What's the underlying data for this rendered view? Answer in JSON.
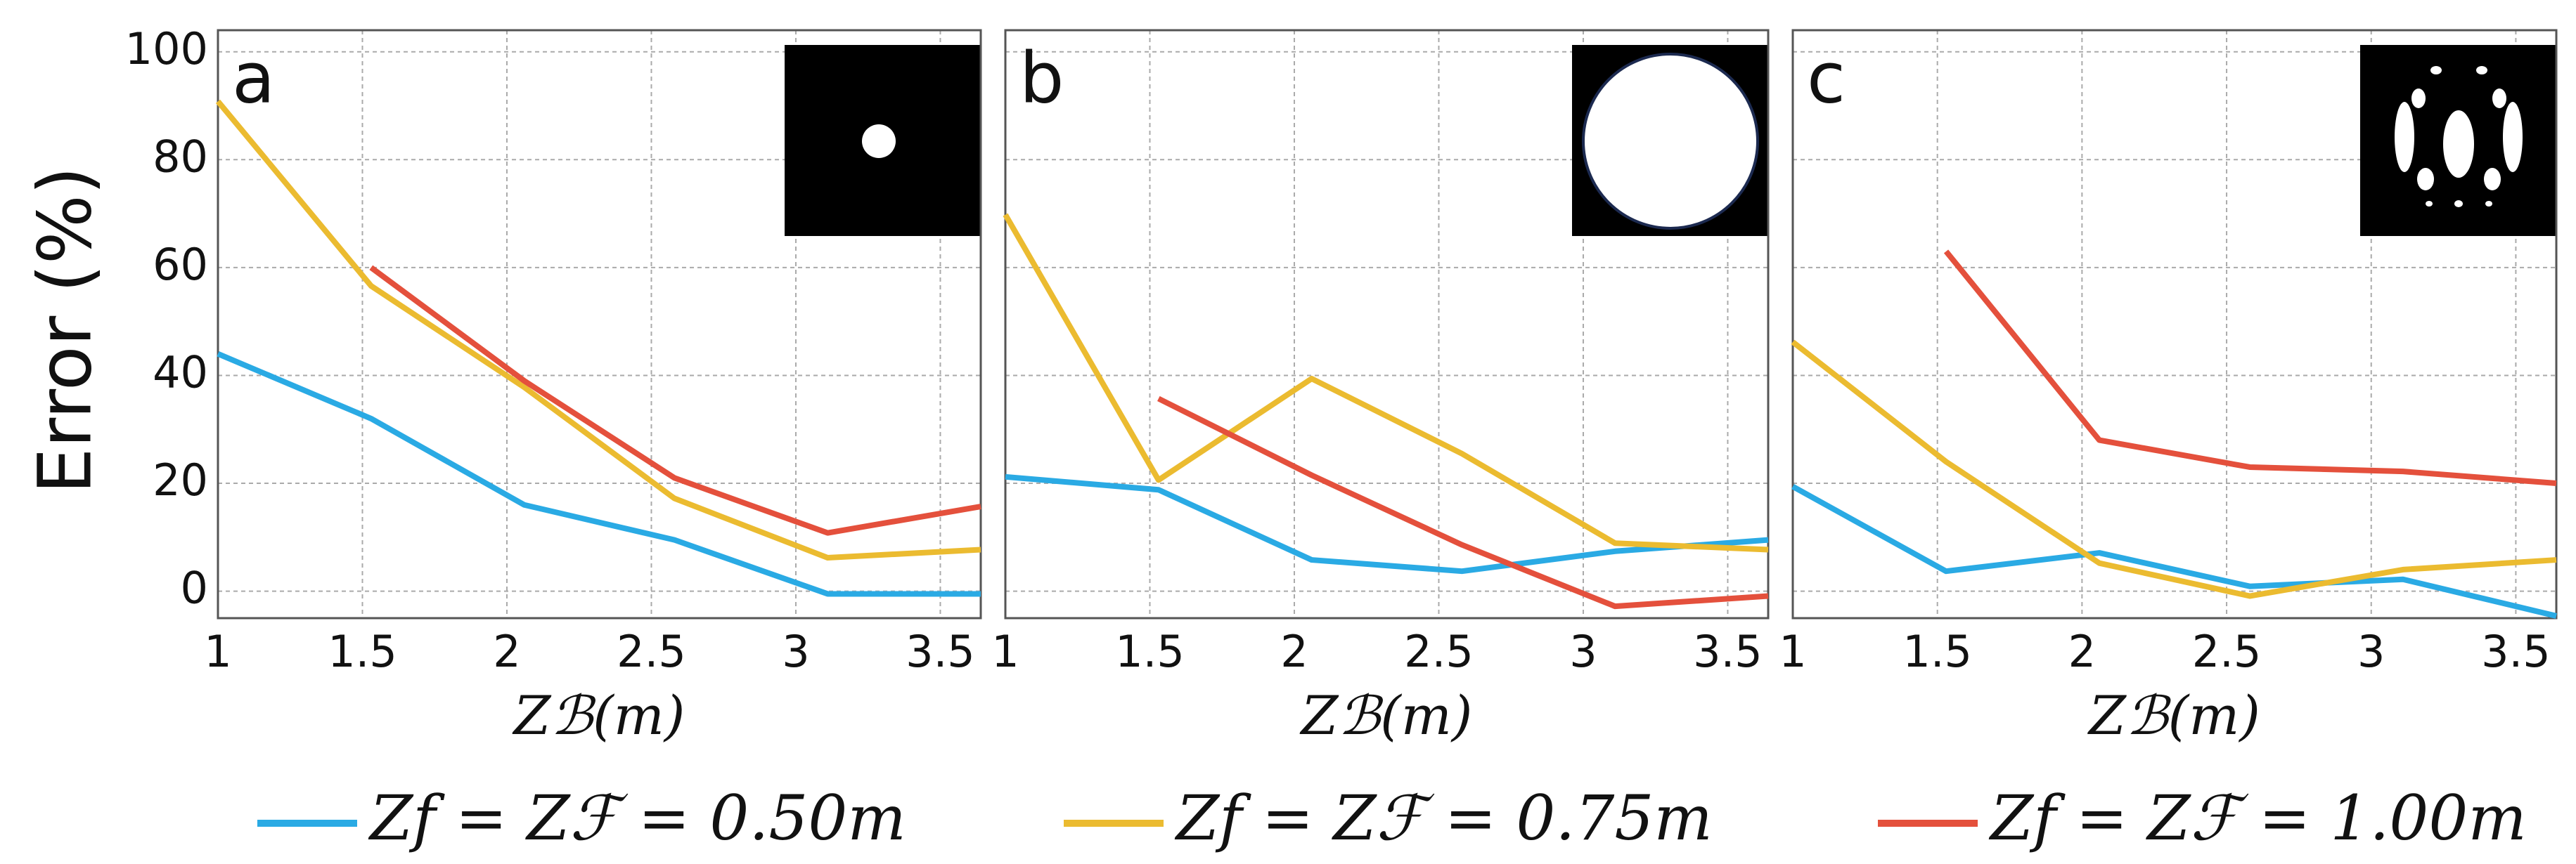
{
  "chart_data": [
    {
      "type": "line",
      "label": "a",
      "ylabel": "Error (%)",
      "xlabel": "Zℬ(m)",
      "x": [
        1,
        1.53,
        2.06,
        2.58,
        3.11,
        3.64
      ],
      "xlim": [
        1,
        3.64
      ],
      "xticks": [
        1,
        1.5,
        2,
        2.5,
        3,
        3.5
      ],
      "ylim": [
        -5,
        104
      ],
      "yticks": [
        0,
        20,
        40,
        60,
        80,
        100
      ],
      "grid": true,
      "series": [
        {
          "name": "Zf = Zℱ = 0.50m",
          "color": "#2aaae4",
          "values": [
            44,
            32,
            16,
            9.5,
            -0.5,
            -0.5
          ]
        },
        {
          "name": "Zf = Zℱ = 0.75m",
          "color": "#ebbb30",
          "values": [
            90.8,
            56.6,
            37.8,
            17.2,
            6.2,
            7.7
          ]
        },
        {
          "name": "Zf = Zℱ = 1.00m",
          "color": "#e4503c",
          "values": [
            null,
            60,
            39,
            21,
            10.8,
            15.7
          ]
        }
      ]
    },
    {
      "type": "line",
      "label": "b",
      "xlabel": "Zℬ(m)",
      "x": [
        1,
        1.53,
        2.06,
        2.58,
        3.11,
        3.64
      ],
      "xlim": [
        1,
        3.64
      ],
      "xticks": [
        1,
        1.5,
        2,
        2.5,
        3,
        3.5
      ],
      "ylim": [
        -5,
        104
      ],
      "yticks": [
        0,
        20,
        40,
        60,
        80,
        100
      ],
      "grid": true,
      "series": [
        {
          "color": "#2aaae4",
          "values": [
            21.2,
            18.8,
            5.8,
            3.7,
            7.4,
            9.5
          ]
        },
        {
          "color": "#ebbb30",
          "values": [
            69.8,
            20.6,
            39.4,
            25.5,
            8.9,
            7.7
          ]
        },
        {
          "color": "#e4503c",
          "values": [
            null,
            35.7,
            21.5,
            8.6,
            -2.8,
            -0.9
          ]
        }
      ]
    },
    {
      "type": "line",
      "label": "c",
      "xlabel": "Zℬ(m)",
      "x": [
        1,
        1.53,
        2.06,
        2.58,
        3.11,
        3.64
      ],
      "xlim": [
        1,
        3.64
      ],
      "xticks": [
        1,
        1.5,
        2,
        2.5,
        3,
        3.5
      ],
      "ylim": [
        -5,
        104
      ],
      "yticks": [
        0,
        20,
        40,
        60,
        80,
        100
      ],
      "grid": true,
      "series": [
        {
          "color": "#2aaae4",
          "values": [
            19.4,
            3.7,
            7.1,
            0.9,
            2.2,
            -4.6
          ]
        },
        {
          "color": "#ebbb30",
          "values": [
            46.2,
            24,
            5.2,
            -0.9,
            4,
            5.8
          ]
        },
        {
          "color": "#e4503c",
          "values": [
            null,
            63,
            28,
            23,
            22.2,
            20
          ]
        }
      ]
    }
  ]
}
